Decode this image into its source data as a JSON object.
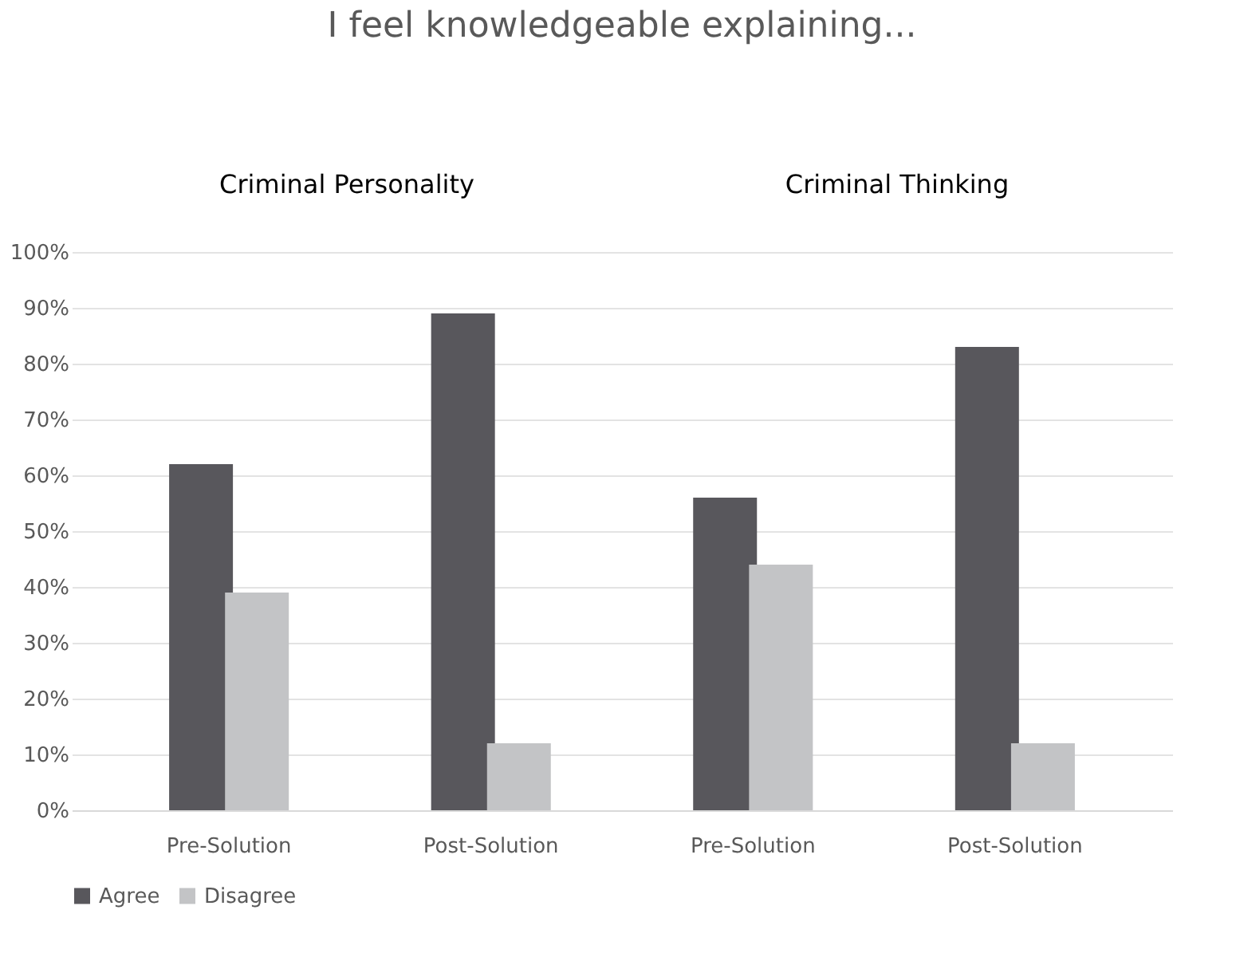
{
  "chart_data": {
    "type": "bar",
    "title": "I feel knowledgeable explaining...",
    "categories": [
      "Pre-Solution",
      "Post-Solution",
      "Pre-Solution",
      "Post-Solution"
    ],
    "series": [
      {
        "name": "Agree",
        "color": "#58575c",
        "values": [
          62,
          89,
          56,
          83
        ]
      },
      {
        "name": "Disagree",
        "color": "#c3c4c6",
        "values": [
          39,
          12,
          44,
          12
        ]
      }
    ],
    "annotations": [
      "Criminal Personality",
      "Criminal Thinking"
    ],
    "ylim": [
      0,
      100
    ],
    "yticks": [
      {
        "value": 0,
        "label": "0%"
      },
      {
        "value": 10,
        "label": "10%"
      },
      {
        "value": 20,
        "label": "20%"
      },
      {
        "value": 30,
        "label": "30%"
      },
      {
        "value": 40,
        "label": "40%"
      },
      {
        "value": 50,
        "label": "50%"
      },
      {
        "value": 60,
        "label": "60%"
      },
      {
        "value": 70,
        "label": "70%"
      },
      {
        "value": 80,
        "label": "80%"
      },
      {
        "value": 90,
        "label": "90%"
      },
      {
        "value": 100,
        "label": "100%"
      }
    ],
    "grid": "y",
    "legend": "bottom"
  }
}
